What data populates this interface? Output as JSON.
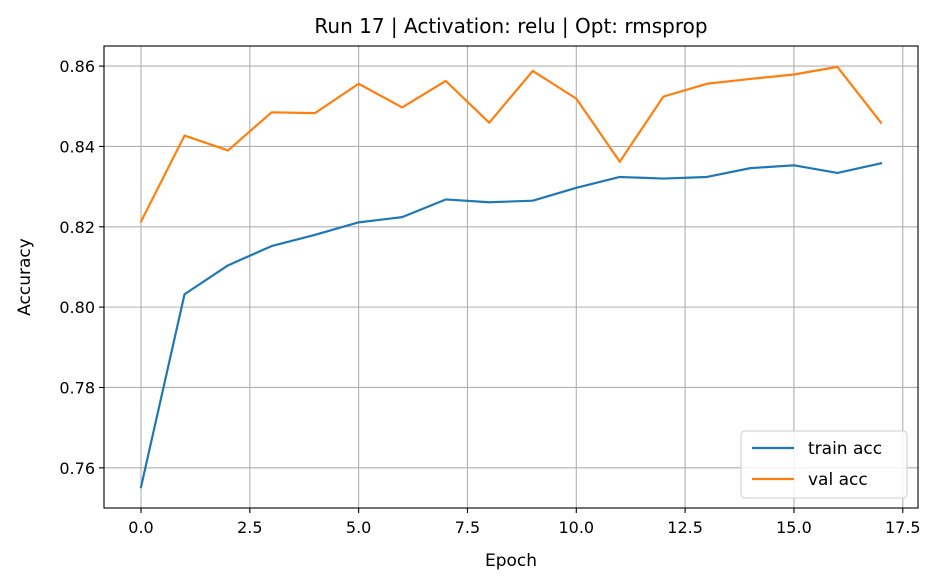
{
  "chart_data": {
    "type": "line",
    "title": "Run 17 | Activation: relu | Opt: rmsprop",
    "xlabel": "Epoch",
    "ylabel": "Accuracy",
    "xlim": [
      -0.85,
      17.85
    ],
    "ylim": [
      0.75,
      0.865
    ],
    "xticks": [
      0.0,
      2.5,
      5.0,
      7.5,
      10.0,
      12.5,
      15.0,
      17.5
    ],
    "xtick_labels": [
      "0.0",
      "2.5",
      "5.0",
      "7.5",
      "10.0",
      "12.5",
      "15.0",
      "17.5"
    ],
    "yticks": [
      0.76,
      0.78,
      0.8,
      0.82,
      0.84,
      0.86
    ],
    "ytick_labels": [
      "0.76",
      "0.78",
      "0.80",
      "0.82",
      "0.84",
      "0.86"
    ],
    "grid": true,
    "legend_position": "lower right",
    "x": [
      0,
      1,
      2,
      3,
      4,
      5,
      6,
      7,
      8,
      9,
      10,
      11,
      12,
      13,
      14,
      15,
      16,
      17
    ],
    "series": [
      {
        "name": "train acc",
        "color": "#1f77b4",
        "values": [
          0.7552,
          0.8032,
          0.8104,
          0.8152,
          0.818,
          0.8211,
          0.8224,
          0.8268,
          0.8261,
          0.8265,
          0.8297,
          0.8324,
          0.832,
          0.8324,
          0.8346,
          0.8353,
          0.8334,
          0.8358
        ]
      },
      {
        "name": "val acc",
        "color": "#ff7f0e",
        "values": [
          0.8213,
          0.8427,
          0.839,
          0.8485,
          0.8483,
          0.8556,
          0.8497,
          0.8563,
          0.8459,
          0.8588,
          0.8519,
          0.8362,
          0.8524,
          0.8556,
          0.8568,
          0.8579,
          0.8598,
          0.8459
        ]
      }
    ]
  }
}
